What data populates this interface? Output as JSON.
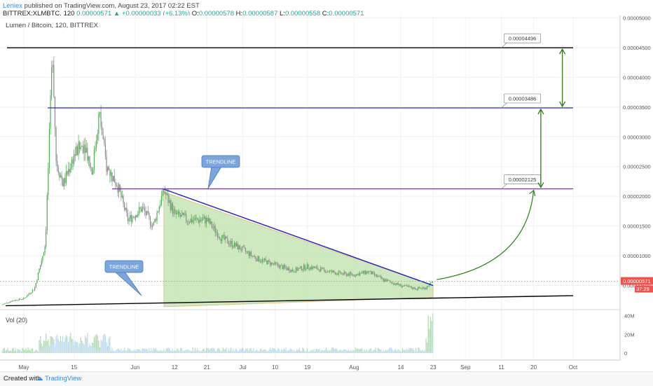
{
  "header": {
    "author": "Leniex",
    "published_text": "published on TradingView.com, August 23, 2017 02:22 EST",
    "symbol": "BITTREX:XLMBTC, 120",
    "last": "0.00000571",
    "change_arrow": "▲",
    "change": "+0.00000033 (+6.13%)",
    "o_label": "O:",
    "o_value": "0.00000578",
    "h_label": "H:",
    "h_value": "0.00000587",
    "l_label": "L:",
    "l_value": "0.00000558",
    "c_label": "C:",
    "c_value": "0.00000571"
  },
  "chart_data": {
    "type": "candlestick",
    "title": "Lumen / Bitcoin, 120, BITTREX",
    "y_ticks": [
      "0.00005000",
      "0.00004500",
      "0.00004000",
      "0.00003500",
      "0.00003000",
      "0.00002500",
      "0.00002000",
      "0.00001500",
      "0.00001000",
      "0.00000500"
    ],
    "y_tick_values": [
      5e-05,
      4.5e-05,
      4e-05,
      3.5e-05,
      3e-05,
      2.5e-05,
      2e-05,
      1.5e-05,
      1e-05,
      5e-06
    ],
    "ylim": [
      1.3e-06,
      5.04e-05
    ],
    "x_ticks": [
      "May",
      "15",
      "Jun",
      "12",
      "21",
      "Jul",
      "10",
      "19",
      "Aug",
      "14",
      "23",
      "Sep",
      "11",
      "20",
      "Oct"
    ],
    "x_tick_dates": [
      "2017-05-01",
      "2017-05-15",
      "2017-06-01",
      "2017-06-12",
      "2017-06-21",
      "2017-07-01",
      "2017-07-10",
      "2017-07-19",
      "2017-08-01",
      "2017-08-14",
      "2017-08-23",
      "2017-09-01",
      "2017-09-11",
      "2017-09-20",
      "2017-10-01"
    ],
    "price_path": [
      [
        "2017-04-25",
        1.8e-06
      ],
      [
        "2017-04-28",
        2.5e-06
      ],
      [
        "2017-05-01",
        2.8e-06
      ],
      [
        "2017-05-04",
        4.5e-06
      ],
      [
        "2017-05-07",
        1.2e-05
      ],
      [
        "2017-05-08",
        2.8e-05
      ],
      [
        "2017-05-09",
        4.5e-05
      ],
      [
        "2017-05-10",
        2.6e-05
      ],
      [
        "2017-05-12",
        2.2e-05
      ],
      [
        "2017-05-15",
        2.7e-05
      ],
      [
        "2017-05-18",
        2.9e-05
      ],
      [
        "2017-05-20",
        2.4e-05
      ],
      [
        "2017-05-22",
        3.4e-05
      ],
      [
        "2017-05-24",
        2.5e-05
      ],
      [
        "2017-05-27",
        2.2e-05
      ],
      [
        "2017-05-30",
        1.6e-05
      ],
      [
        "2017-06-03",
        1.8e-05
      ],
      [
        "2017-06-06",
        1.5e-05
      ],
      [
        "2017-06-09",
        2.1e-05
      ],
      [
        "2017-06-12",
        1.7e-05
      ],
      [
        "2017-06-16",
        1.6e-05
      ],
      [
        "2017-06-21",
        1.6e-05
      ],
      [
        "2017-06-25",
        1.3e-05
      ],
      [
        "2017-07-01",
        1.1e-05
      ],
      [
        "2017-07-05",
        9.5e-06
      ],
      [
        "2017-07-10",
        8.5e-06
      ],
      [
        "2017-07-15",
        7.5e-06
      ],
      [
        "2017-07-19",
        8.2e-06
      ],
      [
        "2017-07-24",
        7.5e-06
      ],
      [
        "2017-07-28",
        7e-06
      ],
      [
        "2017-08-01",
        6.8e-06
      ],
      [
        "2017-08-05",
        7.3e-06
      ],
      [
        "2017-08-09",
        6e-06
      ],
      [
        "2017-08-14",
        5e-06
      ],
      [
        "2017-08-18",
        4.5e-06
      ],
      [
        "2017-08-21",
        4.6e-06
      ],
      [
        "2017-08-23",
        5.7e-06
      ]
    ],
    "volume_ticks": [
      "40M",
      "20M",
      "0"
    ],
    "volume_tick_values": [
      40,
      20,
      0
    ],
    "volume_label": "Vol (20)",
    "current_price_label": "0.00000571",
    "countdown_label": "37:29",
    "levels": [
      {
        "value": 4.496e-05,
        "label": "0.00004496",
        "color": "#000000"
      },
      {
        "value": 3.486e-05,
        "label": "0.00003486",
        "color": "#2b2bd0"
      },
      {
        "value": 2.125e-05,
        "label": "0.00002125",
        "color": "#a020f0"
      }
    ],
    "trendline_labels": [
      "TRENDLINE",
      "TRENDLINE"
    ],
    "colors": {
      "up": "#4caf50",
      "down": "#8a8a8a",
      "triangle_fill": "#c6e4b4",
      "trendline_top": "#2020c0",
      "support": "#000000",
      "arrow": "#2e7d18"
    }
  },
  "footer": {
    "created_with": "Created with",
    "brand": "TradingView"
  }
}
